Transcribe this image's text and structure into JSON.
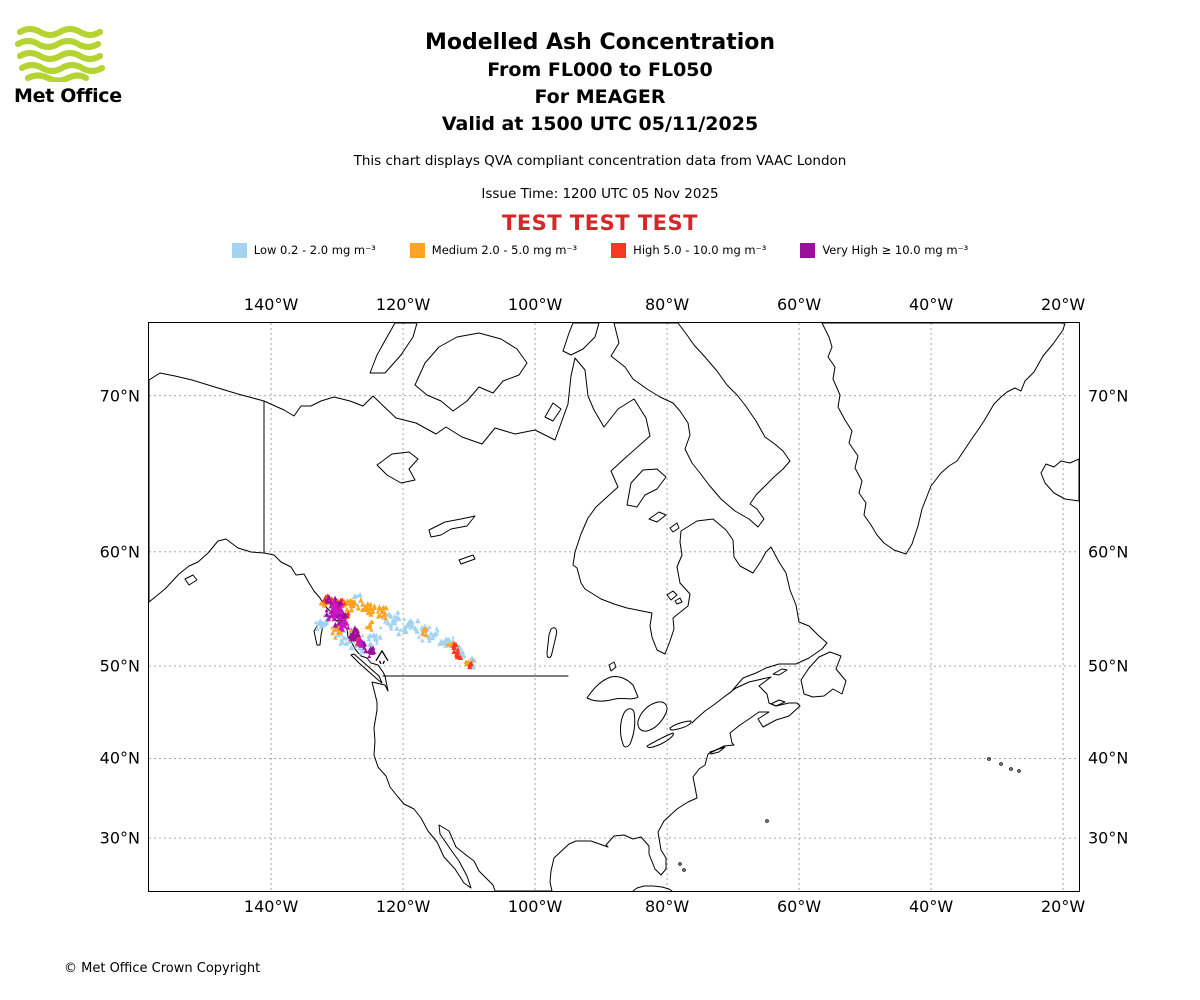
{
  "header": {
    "logo_text": "Met Office",
    "logo_color": "#B5D433",
    "title": "Modelled Ash Concentration",
    "subtitle_fl": "From FL000 to FL050",
    "subtitle_volcano": "For MEAGER",
    "subtitle_valid": "Valid at 1500 UTC 05/11/2025",
    "note": "This chart displays QVA compliant concentration data from VAAC London",
    "issue_time": "Issue Time: 1200 UTC 05 Nov 2025",
    "test_banner": "TEST TEST TEST",
    "test_color": "#D62728"
  },
  "legend": {
    "items": [
      {
        "key": "low",
        "label": "Low 0.2 - 2.0 mg m⁻³",
        "color": "#A3D3F0"
      },
      {
        "key": "medium",
        "label": "Medium 2.0 - 5.0 mg m⁻³",
        "color": "#FFA320"
      },
      {
        "key": "high",
        "label": "High 5.0 - 10.0 mg m⁻³",
        "color": "#F93822"
      },
      {
        "key": "very_high",
        "label": "Very High ≥ 10.0 mg m⁻³",
        "color": "#9A0F9E"
      }
    ]
  },
  "map": {
    "lon_ticks": [
      {
        "deg": 140,
        "label": "140°W"
      },
      {
        "deg": 120,
        "label": "120°W"
      },
      {
        "deg": 100,
        "label": "100°W"
      },
      {
        "deg": 80,
        "label": "80°W"
      },
      {
        "deg": 60,
        "label": "60°W"
      },
      {
        "deg": 40,
        "label": "40°W"
      },
      {
        "deg": 20,
        "label": "20°W"
      }
    ],
    "lat_ticks": [
      {
        "deg": 70,
        "label": "70°N"
      },
      {
        "deg": 60,
        "label": "60°N"
      },
      {
        "deg": 50,
        "label": "50°N"
      },
      {
        "deg": 40,
        "label": "40°N"
      },
      {
        "deg": 30,
        "label": "30°N"
      }
    ]
  },
  "chart_data": {
    "type": "geo-scatter",
    "subject": "Volcanic ash concentration, FL000 to FL050",
    "source_volcano": "MEAGER",
    "valid_time": "1500 UTC 05/11/2025",
    "issue_time": "1200 UTC 05 Nov 2025",
    "concentration_bands": [
      {
        "name": "Low",
        "range_mg_m3": "0.2 - 2.0"
      },
      {
        "name": "Medium",
        "range_mg_m3": "2.0 - 5.0"
      },
      {
        "name": "High",
        "range_mg_m3": "5.0 - 10.0"
      },
      {
        "name": "Very High",
        "range_mg_m3": "≥ 10.0"
      }
    ],
    "very_high_bright_color": "#CE17C4",
    "volcano": {
      "name": "MEAGER",
      "lon_w": 123.2,
      "lat_n": 50.9
    },
    "plume_clusters": [
      {
        "category": "low",
        "lon_w": 132.3,
        "lat_n": 54.2,
        "rlon": 0.9,
        "rlat": 0.9,
        "n": 14
      },
      {
        "category": "low",
        "lon_w": 129.0,
        "lat_n": 52.6,
        "rlon": 1.1,
        "rlat": 0.8,
        "n": 14
      },
      {
        "category": "low",
        "lon_w": 126.8,
        "lat_n": 51.9,
        "rlon": 1.2,
        "rlat": 0.8,
        "n": 16
      },
      {
        "category": "low",
        "lon_w": 124.5,
        "lat_n": 52.6,
        "rlon": 1.1,
        "rlat": 0.7,
        "n": 12
      },
      {
        "category": "low",
        "lon_w": 121.8,
        "lat_n": 54.2,
        "rlon": 1.6,
        "rlat": 0.8,
        "n": 26
      },
      {
        "category": "low",
        "lon_w": 119.0,
        "lat_n": 53.8,
        "rlon": 1.6,
        "rlat": 0.7,
        "n": 24
      },
      {
        "category": "low",
        "lon_w": 116.2,
        "lat_n": 53.1,
        "rlon": 1.4,
        "rlat": 0.7,
        "n": 20
      },
      {
        "category": "low",
        "lon_w": 113.4,
        "lat_n": 52.3,
        "rlon": 1.1,
        "rlat": 0.7,
        "n": 18
      },
      {
        "category": "low",
        "lon_w": 111.3,
        "lat_n": 51.3,
        "rlon": 0.9,
        "rlat": 0.6,
        "n": 14
      },
      {
        "category": "low",
        "lon_w": 109.6,
        "lat_n": 50.3,
        "rlon": 0.7,
        "rlat": 0.5,
        "n": 10
      },
      {
        "category": "low",
        "lon_w": 127.0,
        "lat_n": 55.9,
        "rlon": 1.2,
        "rlat": 0.6,
        "n": 10
      },
      {
        "category": "medium",
        "lon_w": 128.0,
        "lat_n": 55.7,
        "rlon": 1.5,
        "rlat": 0.55,
        "n": 30
      },
      {
        "category": "medium",
        "lon_w": 125.2,
        "lat_n": 55.3,
        "rlon": 1.2,
        "rlat": 0.5,
        "n": 24
      },
      {
        "category": "medium",
        "lon_w": 123.4,
        "lat_n": 55.0,
        "rlon": 0.8,
        "rlat": 0.45,
        "n": 14
      },
      {
        "category": "medium",
        "lon_w": 130.0,
        "lat_n": 53.4,
        "rlon": 0.8,
        "rlat": 0.7,
        "n": 14
      },
      {
        "category": "medium",
        "lon_w": 127.4,
        "lat_n": 53.0,
        "rlon": 0.7,
        "rlat": 0.5,
        "n": 10
      },
      {
        "category": "medium",
        "lon_w": 124.9,
        "lat_n": 53.8,
        "rlon": 0.6,
        "rlat": 0.5,
        "n": 8
      },
      {
        "category": "medium",
        "lon_w": 116.8,
        "lat_n": 53.2,
        "rlon": 0.55,
        "rlat": 0.4,
        "n": 8
      },
      {
        "category": "medium",
        "lon_w": 112.5,
        "lat_n": 52.1,
        "rlon": 0.6,
        "rlat": 0.5,
        "n": 10
      },
      {
        "category": "medium",
        "lon_w": 110.1,
        "lat_n": 50.4,
        "rlon": 0.5,
        "rlat": 0.4,
        "n": 7
      },
      {
        "category": "medium",
        "lon_w": 131.7,
        "lat_n": 55.9,
        "rlon": 0.8,
        "rlat": 0.5,
        "n": 10
      },
      {
        "category": "high",
        "lon_w": 131.5,
        "lat_n": 56.1,
        "rlon": 0.7,
        "rlat": 0.4,
        "n": 10
      },
      {
        "category": "high",
        "lon_w": 129.3,
        "lat_n": 55.9,
        "rlon": 0.7,
        "rlat": 0.35,
        "n": 8
      },
      {
        "category": "high",
        "lon_w": 128.6,
        "lat_n": 54.7,
        "rlon": 0.6,
        "rlat": 0.45,
        "n": 9
      },
      {
        "category": "high",
        "lon_w": 126.7,
        "lat_n": 52.6,
        "rlon": 0.5,
        "rlat": 0.4,
        "n": 6
      },
      {
        "category": "high",
        "lon_w": 112.1,
        "lat_n": 51.8,
        "rlon": 0.45,
        "rlat": 0.4,
        "n": 8
      },
      {
        "category": "high",
        "lon_w": 111.7,
        "lat_n": 51.1,
        "rlon": 0.4,
        "rlat": 0.4,
        "n": 7
      },
      {
        "category": "high",
        "lon_w": 109.8,
        "lat_n": 50.1,
        "rlon": 0.35,
        "rlat": 0.3,
        "n": 5
      },
      {
        "category": "very_high",
        "lon_w": 130.4,
        "lat_n": 55.4,
        "rlon": 1.3,
        "rlat": 0.95,
        "n": 55
      },
      {
        "category": "very_high",
        "lon_w": 129.3,
        "lat_n": 54.3,
        "rlon": 0.8,
        "rlat": 0.6,
        "n": 25
      },
      {
        "category": "very_high",
        "lon_w": 127.3,
        "lat_n": 53.0,
        "rlon": 0.7,
        "rlat": 0.6,
        "n": 18
      },
      {
        "category": "very_high",
        "lon_w": 126.1,
        "lat_n": 52.0,
        "rlon": 0.55,
        "rlat": 0.45,
        "n": 12
      },
      {
        "category": "very_high",
        "lon_w": 124.8,
        "lat_n": 51.4,
        "rlon": 0.5,
        "rlat": 0.4,
        "n": 10
      },
      {
        "category": "very_high",
        "bright": true,
        "lon_w": 130.1,
        "lat_n": 55.2,
        "rlon": 1.0,
        "rlat": 0.75,
        "n": 30
      },
      {
        "category": "very_high",
        "bright": true,
        "lon_w": 128.9,
        "lat_n": 53.9,
        "rlon": 0.55,
        "rlat": 0.45,
        "n": 12
      },
      {
        "category": "very_high",
        "bright": true,
        "lon_w": 126.6,
        "lat_n": 52.4,
        "rlon": 0.4,
        "rlat": 0.35,
        "n": 8
      }
    ]
  },
  "footer": {
    "copyright": "© Met Office Crown Copyright"
  }
}
